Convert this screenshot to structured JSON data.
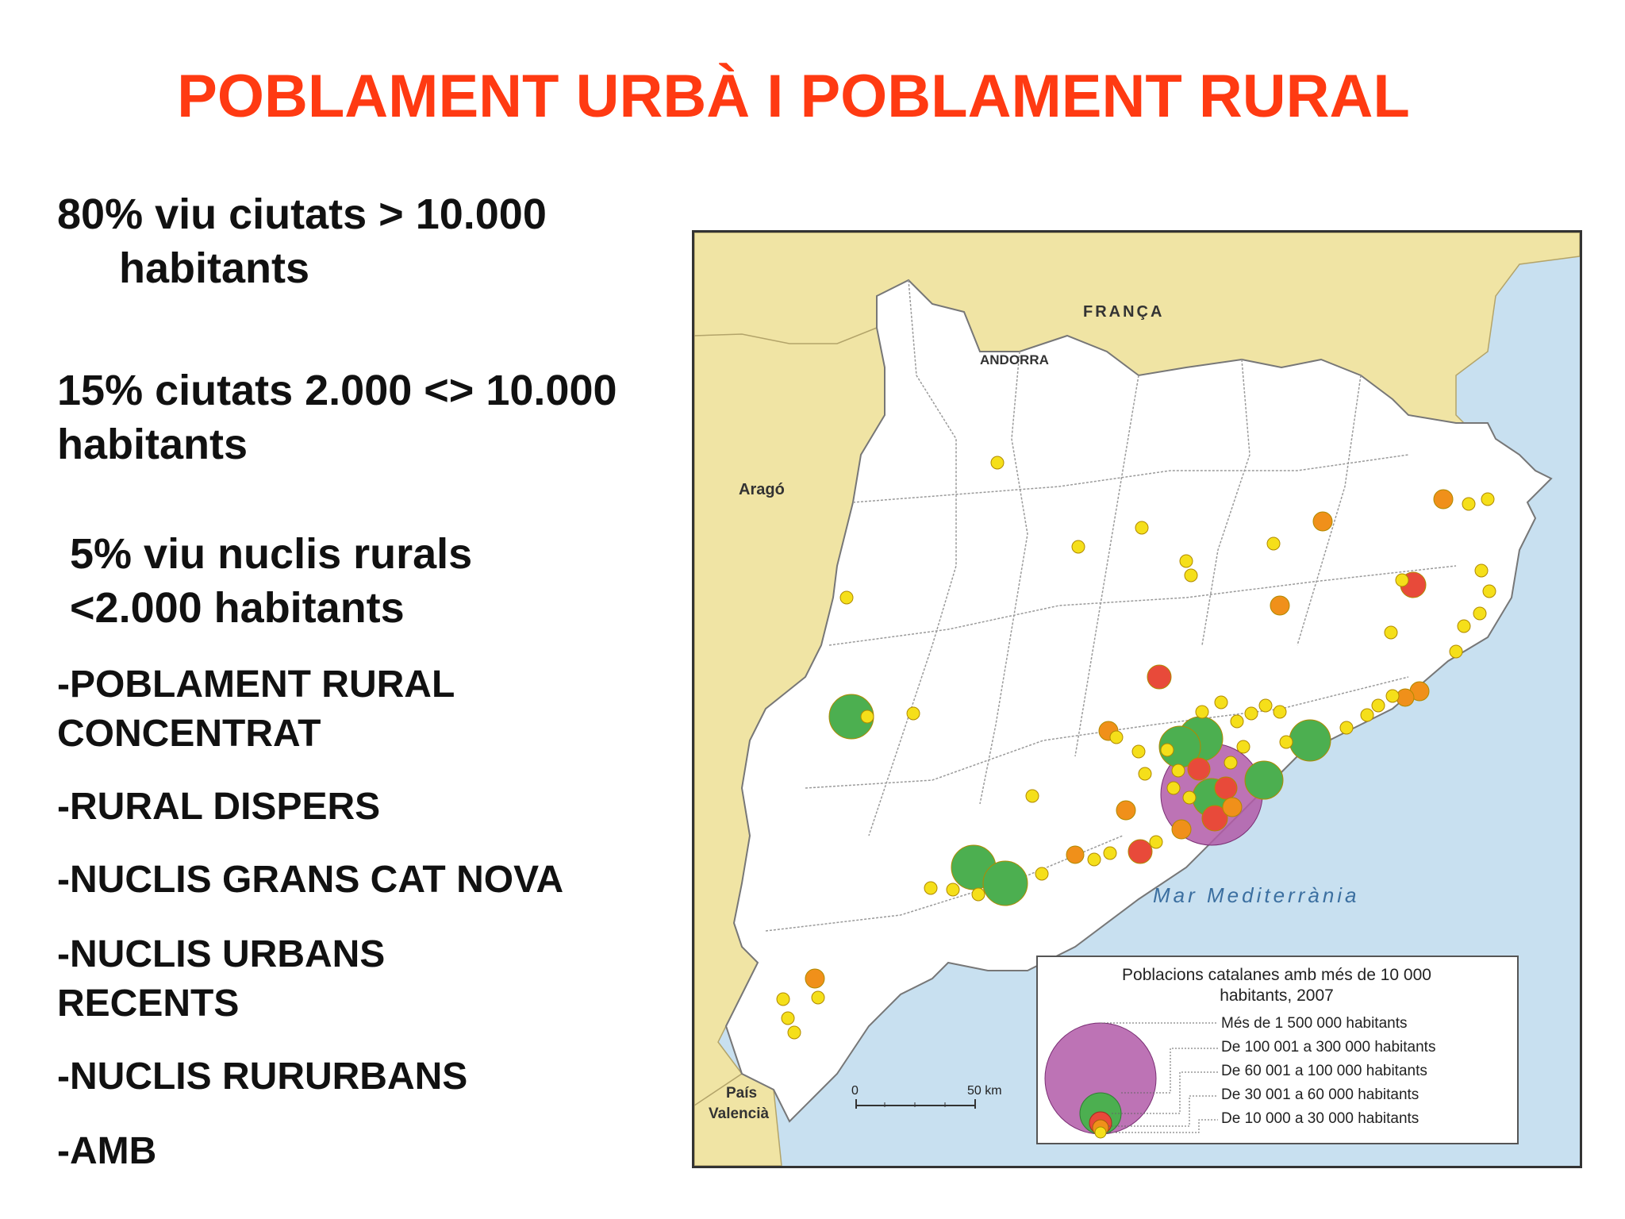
{
  "title": "POBLAMENT URBÀ I POBLAMENT RURAL",
  "stats": {
    "s1_line1": "80% viu ciutats > 10.000",
    "s1_line2": "habitants",
    "s2_line1": "15% ciutats 2.000 <> 10.000",
    "s2_line2": "habitants",
    "s3_line1": "5% viu nuclis rurals",
    "s3_line2": "<2.000 habitants"
  },
  "bullets": [
    {
      "line1": "-POBLAMENT RURAL",
      "line2": "CONCENTRAT"
    },
    {
      "line1": "-RURAL DISPERS",
      "line2": ""
    },
    {
      "line1": "-NUCLIS GRANS CAT NOVA",
      "line2": ""
    },
    {
      "line1": "-NUCLIS URBANS",
      "line2": "RECENTS"
    },
    {
      "line1": "-NUCLIS RURURBANS",
      "line2": ""
    },
    {
      "line1": "-AMB",
      "line2": ""
    }
  ],
  "map": {
    "labels": {
      "franca": "FRANÇA",
      "andorra": "ANDORRA",
      "arago": "Aragó",
      "pais1": "País",
      "pais2": "Valencià",
      "sea": "Mar Mediterrània"
    },
    "scale": {
      "zero": "0",
      "end": "50 km"
    },
    "legend": {
      "title1": "Poblacions catalanes amb més de 10 000",
      "title2": "habitants, 2007",
      "items": [
        {
          "label": "Més de 1 500 000 habitants",
          "color": "#b25aa8"
        },
        {
          "label": "De 100 001 a 300 000 habitants",
          "color": "#4caf50"
        },
        {
          "label": "De 60 001 a 100 000 habitants",
          "color": "#e84a3a"
        },
        {
          "label": "De 30 001 a 60 000 habitants",
          "color": "#f0901a"
        },
        {
          "label": "De 10 000 a 30 000 habitants",
          "color": "#f5df1a"
        }
      ]
    },
    "colors": {
      "land": "#ffffff",
      "neighbour": "#f0e4a4",
      "sea": "#c8e0f0",
      "purple": "#b25aa8",
      "green": "#4caf50",
      "red": "#e84a3a",
      "orange": "#f0901a",
      "yellow": "#f5df1a"
    }
  }
}
